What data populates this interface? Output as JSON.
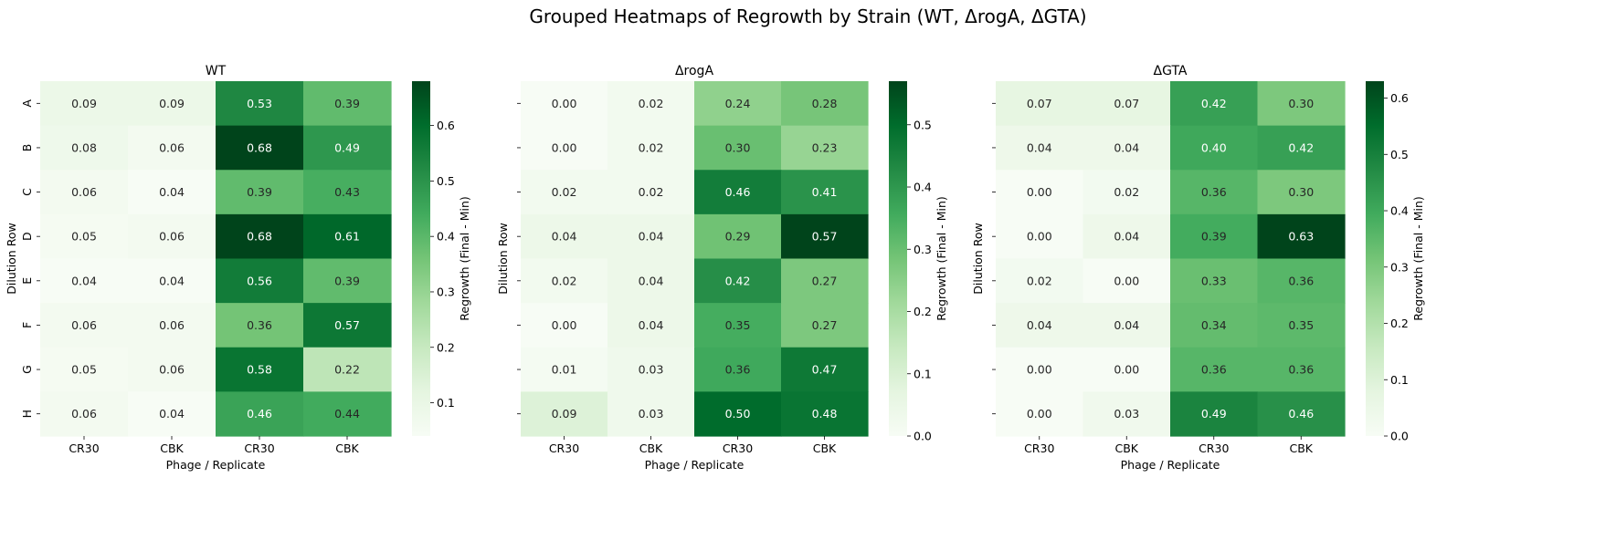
{
  "figure": {
    "title": "Grouped Heatmaps of Regrowth by Strain (WT, ΔrogA, ΔGTA)"
  },
  "chart_data": [
    {
      "type": "heatmap",
      "title": "WT",
      "xlabel": "Phage / Replicate",
      "ylabel": "Dilution Row",
      "x_categories": [
        "CR30",
        "CBK",
        "CR30",
        "CBK"
      ],
      "y_categories": [
        "A",
        "B",
        "C",
        "D",
        "E",
        "F",
        "G",
        "H"
      ],
      "values": [
        [
          0.09,
          0.09,
          0.53,
          0.39
        ],
        [
          0.08,
          0.06,
          0.68,
          0.49
        ],
        [
          0.06,
          0.04,
          0.39,
          0.43
        ],
        [
          0.05,
          0.06,
          0.68,
          0.61
        ],
        [
          0.04,
          0.04,
          0.56,
          0.39
        ],
        [
          0.06,
          0.06,
          0.36,
          0.57
        ],
        [
          0.05,
          0.06,
          0.58,
          0.22
        ],
        [
          0.06,
          0.04,
          0.46,
          0.44
        ]
      ],
      "colorbar": {
        "label": "Regrowth (Final - Min)",
        "range": [
          0.04,
          0.68
        ],
        "ticks": [
          "0.1",
          "0.2",
          "0.3",
          "0.4",
          "0.5",
          "0.6"
        ]
      },
      "show_ylabel_ticks": true,
      "colormap": "Greens"
    },
    {
      "type": "heatmap",
      "title": "ΔrogA",
      "xlabel": "Phage / Replicate",
      "ylabel": "Dilution Row",
      "x_categories": [
        "CR30",
        "CBK",
        "CR30",
        "CBK"
      ],
      "y_categories": [
        "A",
        "B",
        "C",
        "D",
        "E",
        "F",
        "G",
        "H"
      ],
      "values": [
        [
          0.0,
          0.02,
          0.24,
          0.28
        ],
        [
          0.0,
          0.02,
          0.3,
          0.23
        ],
        [
          0.02,
          0.02,
          0.46,
          0.41
        ],
        [
          0.04,
          0.04,
          0.29,
          0.57
        ],
        [
          0.02,
          0.04,
          0.42,
          0.27
        ],
        [
          0.0,
          0.04,
          0.35,
          0.27
        ],
        [
          0.01,
          0.03,
          0.36,
          0.47
        ],
        [
          0.09,
          0.03,
          0.5,
          0.48
        ]
      ],
      "colorbar": {
        "label": "Regrowth (Final - Min)",
        "range": [
          0.0,
          0.57
        ],
        "ticks": [
          "0.0",
          "0.1",
          "0.2",
          "0.3",
          "0.4",
          "0.5"
        ]
      },
      "show_ylabel_ticks": false,
      "colormap": "Greens"
    },
    {
      "type": "heatmap",
      "title": "ΔGTA",
      "xlabel": "Phage / Replicate",
      "ylabel": "Dilution Row",
      "x_categories": [
        "CR30",
        "CBK",
        "CR30",
        "CBK"
      ],
      "y_categories": [
        "A",
        "B",
        "C",
        "D",
        "E",
        "F",
        "G",
        "H"
      ],
      "values": [
        [
          0.07,
          0.07,
          0.42,
          0.3
        ],
        [
          0.04,
          0.04,
          0.4,
          0.42
        ],
        [
          0.0,
          0.02,
          0.36,
          0.3
        ],
        [
          0.0,
          0.04,
          0.39,
          0.63
        ],
        [
          0.02,
          0.0,
          0.33,
          0.36
        ],
        [
          0.04,
          0.04,
          0.34,
          0.35
        ],
        [
          0.0,
          0.0,
          0.36,
          0.36
        ],
        [
          0.0,
          0.03,
          0.49,
          0.46
        ]
      ],
      "colorbar": {
        "label": "Regrowth (Final - Min)",
        "range": [
          0.0,
          0.63
        ],
        "ticks": [
          "0.0",
          "0.1",
          "0.2",
          "0.3",
          "0.4",
          "0.5",
          "0.6"
        ]
      },
      "show_ylabel_ticks": false,
      "colormap": "Greens"
    }
  ]
}
